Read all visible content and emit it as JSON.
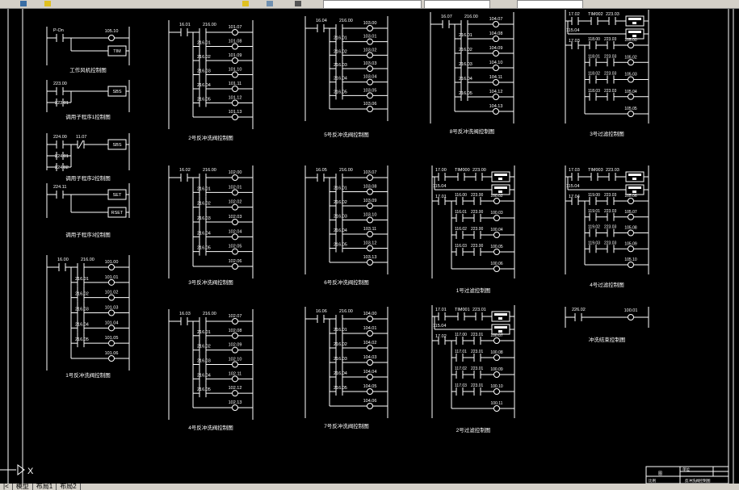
{
  "colors": {
    "background": "#000000",
    "lines": "#ffffff",
    "toolbar": "#d4d0c8"
  },
  "tabs": [
    "模型",
    "布局1",
    "布局2"
  ],
  "ucs_label": "X",
  "title_block": {
    "cells": [
      "图",
      "比例",
      "单位",
      "反冲洗阀控制图"
    ]
  },
  "small_diagrams": [
    {
      "title": "工作风机控制图",
      "contacts": [
        "P-On"
      ],
      "coil": "105.10",
      "box": "TIM"
    },
    {
      "title": "调用子程序1控制图",
      "contacts": [
        "223.00",
        "223.01"
      ],
      "box": "SBS"
    },
    {
      "title": "调用子程序2控制图",
      "contacts": [
        "224.00",
        "224.01",
        "224.02"
      ],
      "nc": "11.07",
      "box": "SBS"
    },
    {
      "title": "调用子程序3控制图",
      "contacts": [
        "224.11"
      ],
      "box": "SET",
      "box2": "RSET"
    },
    {
      "title": "冲洗结束控制图",
      "contacts": [
        "226.02"
      ],
      "coil": "100.01"
    }
  ],
  "backwash_diagrams": [
    {
      "title": "1号反冲洗阀控制图",
      "input": "16.00",
      "contacts": [
        "216.00",
        "216.01",
        "216.02",
        "216.03",
        "216.04",
        "216.05"
      ],
      "coils": [
        "101.00",
        "101.01",
        "101.02",
        "101.03",
        "101.04",
        "101.05",
        "101.06"
      ]
    },
    {
      "title": "2号反冲洗阀控制图",
      "input": "16.01",
      "contacts": [
        "216.00",
        "216.01",
        "216.02",
        "216.03",
        "216.04",
        "216.05"
      ],
      "coils": [
        "101.07",
        "101.08",
        "101.09",
        "101.10",
        "101.11",
        "101.12",
        "101.13"
      ]
    },
    {
      "title": "3号反冲洗阀控制图",
      "input": "16.02",
      "contacts": [
        "216.00",
        "216.01",
        "216.02",
        "216.03",
        "216.04",
        "216.05"
      ],
      "coils": [
        "102.00",
        "102.01",
        "102.02",
        "102.03",
        "102.04",
        "102.05",
        "102.06"
      ]
    },
    {
      "title": "4号反冲洗阀控制图",
      "input": "16.03",
      "contacts": [
        "216.00",
        "216.01",
        "216.02",
        "216.03",
        "216.04",
        "216.05"
      ],
      "coils": [
        "102.07",
        "102.08",
        "102.09",
        "102.10",
        "102.11",
        "102.12",
        "102.13"
      ]
    },
    {
      "title": "5号反冲洗阀控制图",
      "input": "16.04",
      "contacts": [
        "216.00",
        "216.01",
        "216.02",
        "216.03",
        "216.04",
        "216.05"
      ],
      "coils": [
        "103.00",
        "103.01",
        "103.02",
        "103.03",
        "103.04",
        "103.05",
        "103.06"
      ]
    },
    {
      "title": "6号反冲洗阀控制图",
      "input": "16.05",
      "contacts": [
        "216.00",
        "216.01",
        "216.02",
        "216.03",
        "216.04",
        "216.05"
      ],
      "coils": [
        "103.07",
        "103.08",
        "103.09",
        "103.10",
        "103.11",
        "103.12",
        "103.13"
      ]
    },
    {
      "title": "7号反冲洗阀控制图",
      "input": "16.06",
      "contacts": [
        "216.00",
        "216.01",
        "216.02",
        "216.03",
        "216.04",
        "216.05"
      ],
      "coils": [
        "104.00",
        "104.01",
        "104.02",
        "104.03",
        "104.04",
        "104.05",
        "104.06"
      ]
    },
    {
      "title": "8号反冲洗阀控制图",
      "input": "16.07",
      "contacts": [
        "216.00",
        "216.01",
        "216.02",
        "216.03",
        "216.04",
        "216.05"
      ],
      "coils": [
        "104.07",
        "104.08",
        "104.09",
        "104.10",
        "104.11",
        "104.12",
        "104.13"
      ]
    }
  ],
  "filter_diagrams": [
    {
      "title": "1号过滤控制图",
      "top": [
        "17.00",
        "TIM000",
        "223.00"
      ],
      "hold": "115.04",
      "input": "17.01",
      "inner": [
        "116.00",
        "116.01",
        "116.02",
        "116.03"
      ],
      "inner2": [
        "223.00",
        "223.00",
        "223.00",
        "223.00"
      ],
      "coils": [
        "100.02",
        "100.03",
        "100.04",
        "100.05",
        "100.06"
      ]
    },
    {
      "title": "2号过滤控制图",
      "top": [
        "17.01",
        "TIM001",
        "223.01"
      ],
      "hold": "115.04",
      "input": "17.02",
      "inner": [
        "117.00",
        "117.01",
        "117.02",
        "117.03"
      ],
      "inner2": [
        "223.01",
        "223.01",
        "223.01",
        "223.01"
      ],
      "coils": [
        "100.07",
        "100.08",
        "100.09",
        "100.10",
        "100.11"
      ]
    },
    {
      "title": "3号过滤控制图",
      "top": [
        "17.02",
        "TIM002",
        "223.03"
      ],
      "hold": "115.04",
      "input": "17.03",
      "inner": [
        "118.00",
        "118.01",
        "118.02",
        "118.03"
      ],
      "inner2": [
        "223.03",
        "223.03",
        "223.03",
        "223.03"
      ],
      "coils": [
        "105.00",
        "105.02",
        "105.03",
        "105.04",
        "105.05"
      ]
    },
    {
      "title": "4号过滤控制图",
      "top": [
        "17.03",
        "TIM003",
        "223.03"
      ],
      "hold": "115.04",
      "input": "17.04",
      "inner": [
        "119.00",
        "119.01",
        "119.02",
        "119.03"
      ],
      "inner2": [
        "223.03",
        "223.03",
        "223.03",
        "223.03"
      ],
      "coils": [
        "105.06",
        "105.07",
        "105.08",
        "105.09",
        "105.10"
      ]
    }
  ]
}
